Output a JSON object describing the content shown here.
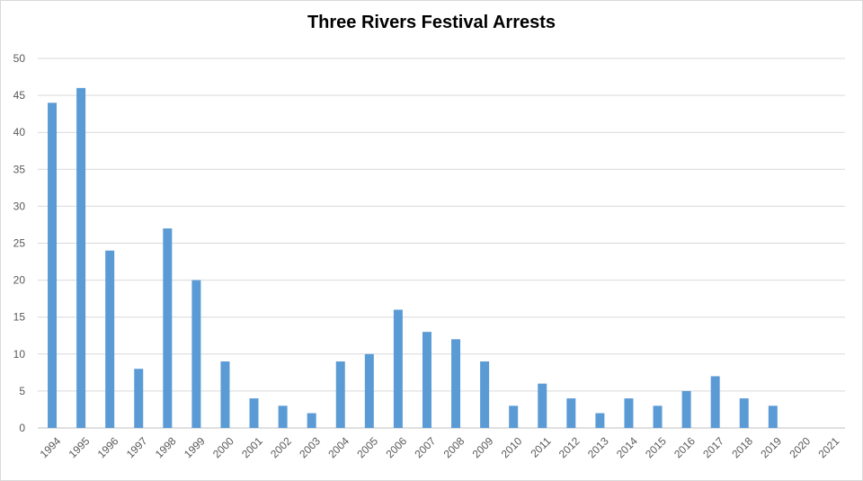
{
  "chart_data": {
    "type": "bar",
    "title": "Three Rivers Festival Arrests",
    "xlabel": "",
    "ylabel": "",
    "ylim": [
      0,
      50
    ],
    "yticks": [
      0,
      5,
      10,
      15,
      20,
      25,
      30,
      35,
      40,
      45,
      50
    ],
    "grid": true,
    "legend": "none",
    "bar_color": "#5b9bd5",
    "categories": [
      "1994",
      "1995",
      "1996",
      "1997",
      "1998",
      "1999",
      "2000",
      "2001",
      "2002",
      "2003",
      "2004",
      "2005",
      "2006",
      "2007",
      "2008",
      "2009",
      "2010",
      "2011",
      "2012",
      "2013",
      "2014",
      "2015",
      "2016",
      "2017",
      "2018",
      "2019",
      "2020",
      "2021"
    ],
    "values": [
      44,
      46,
      24,
      8,
      27,
      20,
      9,
      4,
      3,
      2,
      9,
      10,
      16,
      13,
      12,
      9,
      3,
      6,
      4,
      2,
      4,
      3,
      5,
      7,
      4,
      3,
      0,
      0
    ]
  }
}
